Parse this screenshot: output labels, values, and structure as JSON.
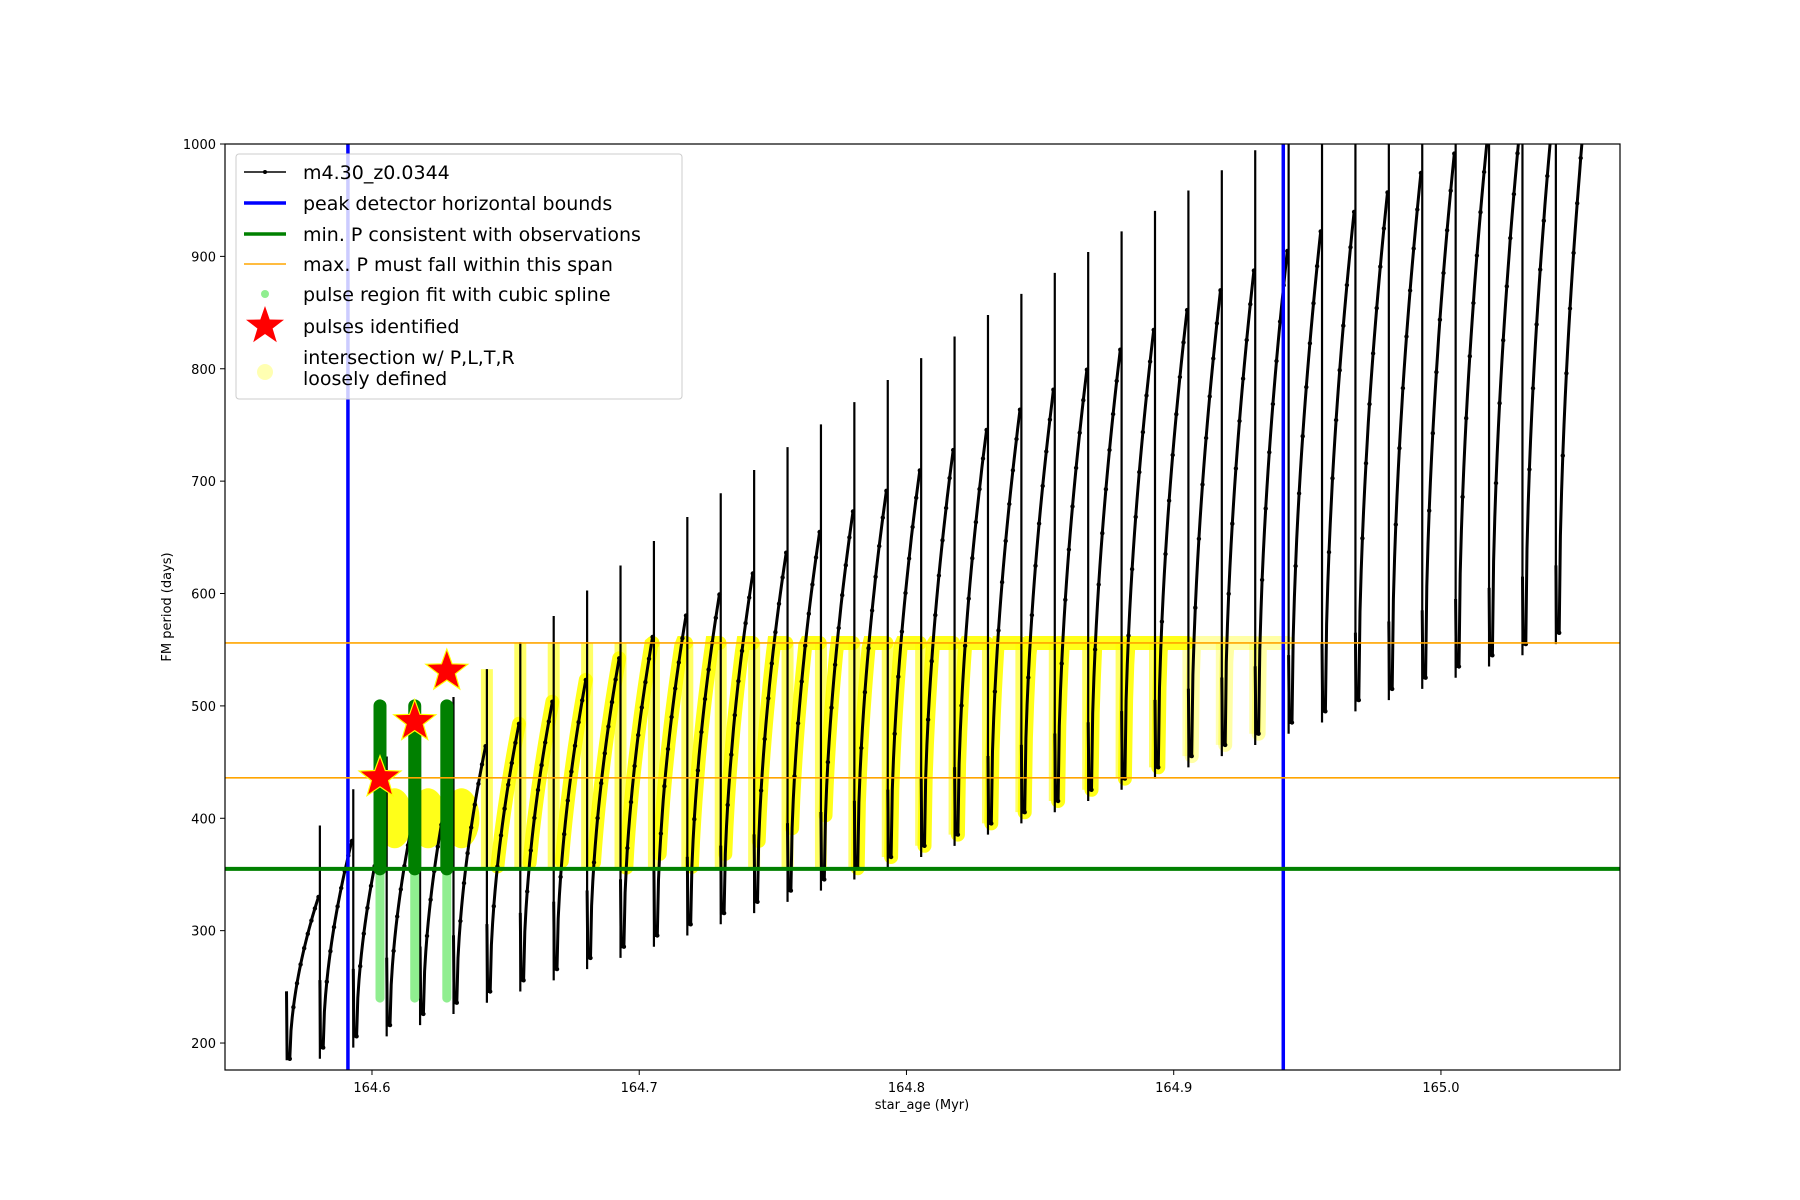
{
  "chart_data": {
    "type": "scatter",
    "xlabel": "star_age (Myr)",
    "ylabel": "FM period (days)",
    "xlim": [
      164.545,
      165.067
    ],
    "ylim": [
      176,
      1000
    ],
    "x_ticks": [
      164.6,
      164.7,
      164.8,
      164.9,
      165.0
    ],
    "x_tick_labels": [
      "164.6",
      "164.7",
      "164.8",
      "164.9",
      "165.0"
    ],
    "y_ticks": [
      200,
      300,
      400,
      500,
      600,
      700,
      800,
      900,
      1000
    ],
    "y_tick_labels": [
      "200",
      "300",
      "400",
      "500",
      "600",
      "700",
      "800",
      "900",
      "1000"
    ],
    "grid": false,
    "legend_position": "upper-left",
    "colors": {
      "track": "#000000",
      "bounds": "#0000ff",
      "min_period": "#008000",
      "max_span": "#ffa500",
      "pulse_fit": "#90ee90",
      "pulse_fit_dark": "#008000",
      "pulses": "#ff0000",
      "intersection": "#ffff00"
    },
    "series": [
      {
        "name": "m4.30_z0.0344",
        "kind": "line-marker",
        "description_points": {
          "first_pulse_age": 164.568,
          "pulse_spacing": 0.0125,
          "pulse_count": 39,
          "trough_start": 186,
          "trough_end": 565,
          "envelope_start": 330,
          "envelope_end": 1000,
          "spike_start": 350,
          "spike_end": 900
        }
      },
      {
        "name": "peak detector horizontal bounds",
        "kind": "vline",
        "x": [
          164.591,
          164.941
        ]
      },
      {
        "name": "min. P consistent with observations",
        "kind": "hline",
        "y": 355
      },
      {
        "name": "max. P must fall within this span",
        "kind": "hline",
        "y": [
          436,
          556
        ]
      },
      {
        "name": "pulse region fit with cubic spline",
        "kind": "scatter",
        "pulses_x": [
          164.603,
          164.616,
          164.628
        ],
        "y_range": [
          240,
          500
        ]
      },
      {
        "name": "pulses identified",
        "kind": "star",
        "x": [
          164.603,
          164.616,
          164.628
        ],
        "y": [
          436,
          486,
          531
        ]
      },
      {
        "name": "intersection w/ P,L,T,R\nloosely defined",
        "kind": "scatter",
        "y_range": [
          355,
          556
        ]
      }
    ]
  }
}
